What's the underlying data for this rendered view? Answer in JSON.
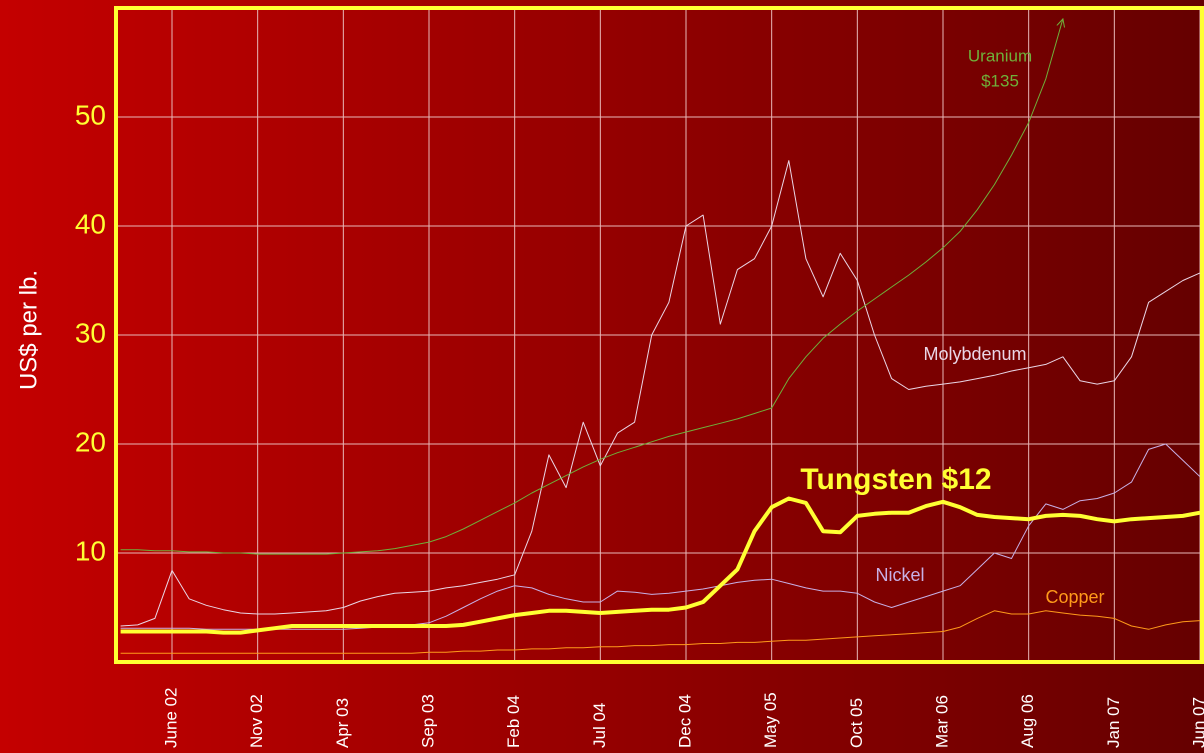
{
  "chart_data": {
    "type": "line",
    "y_label": "US$ per lb.",
    "categories": [
      null,
      null,
      null,
      "June 02",
      null,
      null,
      null,
      null,
      "Nov 02",
      null,
      null,
      null,
      null,
      "Apr 03",
      null,
      null,
      null,
      null,
      "Sep 03",
      null,
      null,
      null,
      null,
      "Feb 04",
      null,
      null,
      null,
      null,
      "Jul 04",
      null,
      null,
      null,
      null,
      "Dec 04",
      null,
      null,
      null,
      null,
      "May 05",
      null,
      null,
      null,
      null,
      "Oct 05",
      null,
      null,
      null,
      null,
      "Mar 06",
      null,
      null,
      null,
      null,
      "Aug 06",
      null,
      null,
      null,
      null,
      "Jan 07",
      null,
      null,
      null,
      null,
      "Jun 07"
    ],
    "ylim": [
      0,
      60
    ],
    "yticks": [
      10,
      20,
      30,
      40,
      50
    ],
    "grid": true,
    "series": [
      {
        "name": "Molybdenum",
        "color": "#ead6e6",
        "values": [
          3.3,
          3.4,
          4.0,
          8.4,
          5.8,
          5.2,
          4.8,
          4.5,
          4.4,
          4.4,
          4.5,
          4.6,
          4.7,
          5.0,
          5.6,
          6.0,
          6.3,
          6.4,
          6.5,
          6.8,
          7.0,
          7.3,
          7.6,
          8.0,
          12,
          19,
          16,
          22,
          18,
          21,
          22,
          30,
          33,
          40,
          41,
          31,
          36,
          37,
          40,
          46,
          37,
          33.5,
          37.5,
          35,
          30,
          26,
          25,
          25.3,
          25.5,
          25.7,
          26,
          26.3,
          26.7,
          27,
          27.3,
          28,
          25.8,
          25.5,
          25.8,
          28,
          33,
          34,
          35,
          35.7
        ]
      },
      {
        "name": "Nickel",
        "color": "#c8b0e6",
        "values": [
          3.1,
          3.1,
          3.1,
          3.1,
          3.1,
          3.0,
          3.0,
          3.0,
          3.0,
          3.0,
          3.0,
          3.0,
          3.0,
          3.0,
          3.1,
          3.2,
          3.3,
          3.4,
          3.6,
          4.2,
          5.0,
          5.8,
          6.5,
          7.0,
          6.8,
          6.2,
          5.8,
          5.5,
          5.5,
          6.5,
          6.4,
          6.2,
          6.3,
          6.5,
          6.7,
          7.0,
          7.3,
          7.5,
          7.6,
          7.2,
          6.8,
          6.5,
          6.5,
          6.3,
          5.5,
          5.0,
          5.5,
          6.0,
          6.5,
          7.0,
          8.5,
          10,
          9.5,
          12.5,
          14.5,
          14,
          14.8,
          15,
          15.5,
          16.5,
          19.5,
          20,
          18.5,
          17
        ]
      },
      {
        "name": "Copper",
        "color": "#ff9a1a",
        "values": [
          0.8,
          0.8,
          0.8,
          0.8,
          0.8,
          0.8,
          0.8,
          0.8,
          0.8,
          0.8,
          0.8,
          0.8,
          0.8,
          0.8,
          0.8,
          0.8,
          0.8,
          0.8,
          0.9,
          0.9,
          1.0,
          1.0,
          1.1,
          1.1,
          1.2,
          1.2,
          1.3,
          1.3,
          1.4,
          1.4,
          1.5,
          1.5,
          1.6,
          1.6,
          1.7,
          1.7,
          1.8,
          1.8,
          1.9,
          2.0,
          2.0,
          2.1,
          2.2,
          2.3,
          2.4,
          2.5,
          2.6,
          2.7,
          2.8,
          3.2,
          4.0,
          4.7,
          4.4,
          4.4,
          4.7,
          4.5,
          4.3,
          4.2,
          4.0,
          3.3,
          3.0,
          3.4,
          3.7,
          3.8
        ]
      },
      {
        "name": "Uranium",
        "annotation": "$135",
        "color": "#6fb03a",
        "values": [
          10.3,
          10.3,
          10.2,
          10.2,
          10.1,
          10.1,
          10.0,
          10.0,
          9.9,
          9.9,
          9.9,
          9.9,
          9.9,
          10.0,
          10.1,
          10.2,
          10.4,
          10.7,
          11.0,
          11.5,
          12.2,
          13.0,
          13.8,
          14.6,
          15.5,
          16.3,
          17.1,
          17.9,
          18.6,
          19.2,
          19.7,
          20.2,
          20.7,
          21.1,
          21.5,
          21.9,
          22.3,
          22.8,
          23.3,
          26.0,
          28.0,
          29.7,
          31.0,
          32.2,
          33.3,
          34.4,
          35.5,
          36.7,
          38.0,
          39.5,
          41.5,
          43.8,
          46.5,
          49.5,
          53.5,
          59,
          null,
          null,
          null,
          null,
          null,
          null,
          null,
          null
        ]
      },
      {
        "name": "Tungsten $12",
        "color": "#ffff33",
        "values": [
          2.8,
          2.8,
          2.8,
          2.8,
          2.8,
          2.8,
          2.7,
          2.7,
          2.9,
          3.1,
          3.3,
          3.3,
          3.3,
          3.3,
          3.3,
          3.3,
          3.3,
          3.3,
          3.3,
          3.3,
          3.4,
          3.7,
          4.0,
          4.3,
          4.5,
          4.7,
          4.7,
          4.6,
          4.5,
          4.6,
          4.7,
          4.8,
          4.8,
          5.0,
          5.5,
          7.0,
          8.5,
          12.0,
          14.2,
          15.0,
          14.6,
          12.0,
          11.9,
          13.4,
          13.6,
          13.7,
          13.7,
          14.3,
          14.7,
          14.2,
          13.5,
          13.3,
          13.2,
          13.1,
          13.4,
          13.5,
          13.4,
          13.1,
          12.9,
          13.1,
          13.2,
          13.3,
          13.4,
          13.7
        ]
      }
    ]
  }
}
